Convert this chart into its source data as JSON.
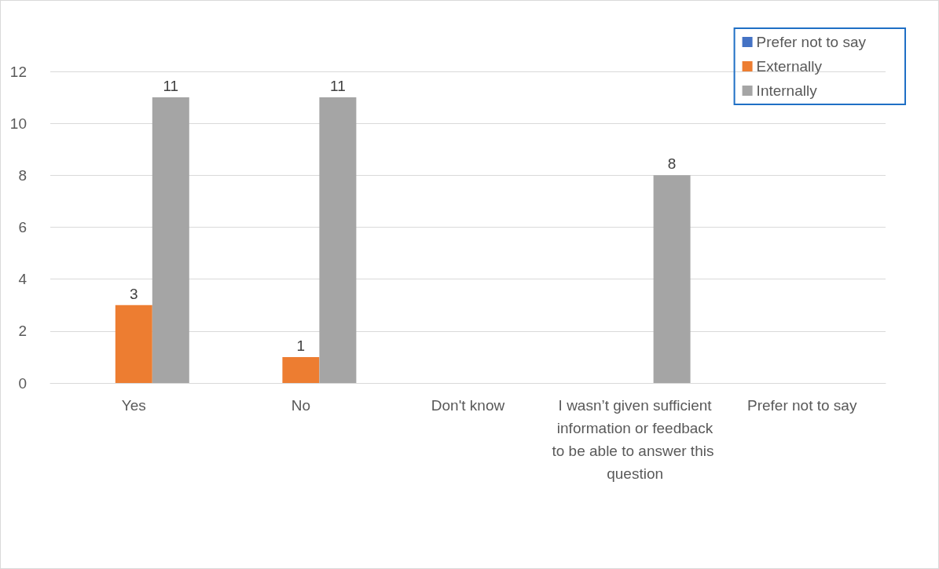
{
  "chart_data": {
    "type": "bar",
    "categories": [
      "Yes",
      "No",
      "Don't know",
      "I wasn’t given sufficient information or feedback to be able to answer this question",
      "Prefer not to say"
    ],
    "series": [
      {
        "name": "Prefer not to say",
        "color": "#4472c4",
        "values": [
          null,
          null,
          null,
          null,
          null
        ]
      },
      {
        "name": "Externally",
        "color": "#ed7d31",
        "values": [
          3,
          1,
          null,
          null,
          null
        ]
      },
      {
        "name": "Internally",
        "color": "#a5a5a5",
        "values": [
          11,
          11,
          null,
          8,
          null
        ]
      }
    ],
    "ylim": [
      0,
      12
    ],
    "yticks": [
      0,
      2,
      4,
      6,
      8,
      10,
      12
    ],
    "grid": "y",
    "legend": "top right",
    "data_labels": true
  }
}
